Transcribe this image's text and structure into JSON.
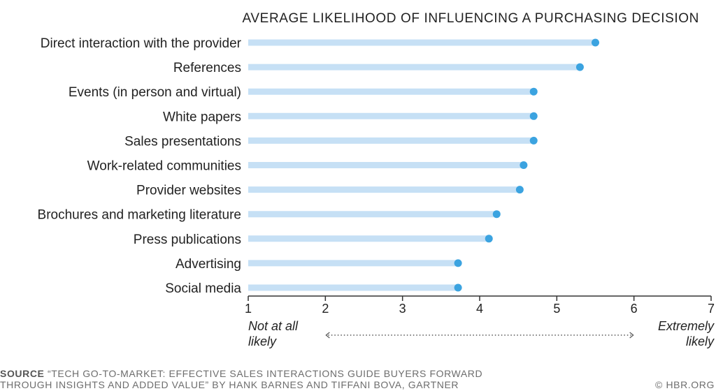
{
  "chart_data": {
    "type": "lollipop",
    "title": "AVERAGE LIKELIHOOD OF INFLUENCING A PURCHASING DECISION",
    "categories": [
      "Direct interaction with the provider",
      "References",
      "Events (in person and virtual)",
      "White papers",
      "Sales presentations",
      "Work-related communities",
      "Provider websites",
      "Brochures and marketing literature",
      "Press publications",
      "Advertising",
      "Social media"
    ],
    "values": [
      5.5,
      5.3,
      4.7,
      4.7,
      4.7,
      4.57,
      4.52,
      4.22,
      4.12,
      3.72,
      3.72
    ],
    "xlim": [
      1,
      7
    ],
    "xticks": [
      "1",
      "2",
      "3",
      "4",
      "5",
      "6",
      "7"
    ],
    "scale_low_label": [
      "Not at all",
      "likely"
    ],
    "scale_high_label": [
      "Extremely",
      "likely"
    ],
    "colors": {
      "bar": "#c6e0f5",
      "dot": "#3ba3e0",
      "axis": "#333333",
      "text": "#222222"
    }
  },
  "footer": {
    "source_label": "SOURCE",
    "source_line1": "“TECH GO-TO-MARKET: EFFECTIVE SALES INTERACTIONS GUIDE BUYERS FORWARD",
    "source_line2": "THROUGH INSIGHTS AND ADDED VALUE” BY HANK BARNES AND TIFFANI BOVA, GARTNER",
    "credit": "© HBR.ORG"
  }
}
